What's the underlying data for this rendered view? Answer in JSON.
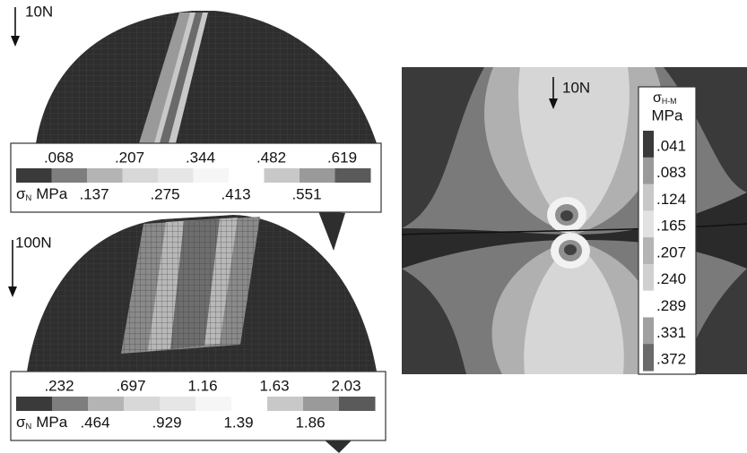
{
  "panels": [
    {
      "load": "10N",
      "legend": {
        "symbol": "σ",
        "subscript": "N",
        "unit": "MPa",
        "upper_labels": [
          ".068",
          ".207",
          ".344",
          ".482",
          ".619"
        ],
        "lower_labels": [
          ".137",
          ".275",
          ".413",
          ".551"
        ]
      }
    },
    {
      "load": "100N",
      "legend": {
        "symbol": "σ",
        "subscript": "N",
        "unit": "MPa",
        "upper_labels": [
          ".232",
          ".697",
          "1.16",
          "1.63",
          "2.03"
        ],
        "lower_labels": [
          ".464",
          ".929",
          "1.39",
          "1.86"
        ]
      }
    }
  ],
  "contour": {
    "load": "10N",
    "legend": {
      "symbol": "σ",
      "subscript": "H-M",
      "unit": "MPa",
      "labels": [
        ".041",
        ".083",
        ".124",
        ".165",
        ".207",
        ".240",
        ".289",
        ".331",
        ".372"
      ]
    }
  }
}
